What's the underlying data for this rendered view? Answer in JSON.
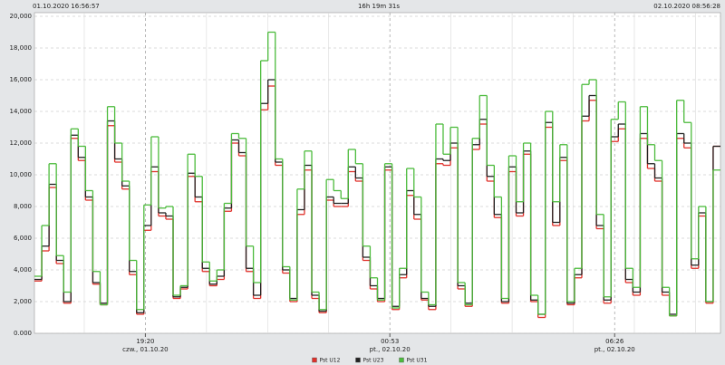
{
  "header": {
    "start": "01.10.2020 16:56:57",
    "duration": "16h 19m 31s",
    "end": "02.10.2020 08:56:28"
  },
  "chart_data": {
    "type": "step",
    "xlim": [
      0,
      94
    ],
    "xticks": [
      {
        "value": 15.2,
        "label": "19:20",
        "date": "czw., 01.10.20"
      },
      {
        "value": 48.7,
        "label": "00:53",
        "date": "pt., 02.10.20"
      },
      {
        "value": 79.5,
        "label": "06:26",
        "date": "pt., 02.10.20"
      }
    ],
    "ylim": [
      0,
      20
    ],
    "yticks": [
      {
        "value": 0,
        "label": "0.000"
      },
      {
        "value": 2,
        "label": "2,000"
      },
      {
        "value": 4,
        "label": "4,000"
      },
      {
        "value": 6,
        "label": "6,000"
      },
      {
        "value": 8,
        "label": "8,000"
      },
      {
        "value": 10,
        "label": "10,000"
      },
      {
        "value": 12,
        "label": "12,000"
      },
      {
        "value": 14,
        "label": "14,000"
      },
      {
        "value": 16,
        "label": "16,000"
      },
      {
        "value": 18,
        "label": "18,000"
      },
      {
        "value": 20,
        "label": "20,000"
      }
    ],
    "grid": true,
    "legend": "bottom",
    "series": [
      {
        "name": "Pst U12",
        "color": "#e0312b",
        "values": [
          3.3,
          5.2,
          9.2,
          4.4,
          1.9,
          12.3,
          10.9,
          8.4,
          3.1,
          1.8,
          13.1,
          10.8,
          9.1,
          3.7,
          1.2,
          6.5,
          10.2,
          7.4,
          7.2,
          2.2,
          2.8,
          9.9,
          8.3,
          3.9,
          3.0,
          3.4,
          7.7,
          12.0,
          11.2,
          3.9,
          2.2,
          14.1,
          15.6,
          10.6,
          3.8,
          2.0,
          7.5,
          10.3,
          2.2,
          1.3,
          8.4,
          8.0,
          8.0,
          10.2,
          9.6,
          4.6,
          2.8,
          2.0,
          10.3,
          1.5,
          3.5,
          8.7,
          7.2,
          2.1,
          1.5,
          10.7,
          10.6,
          11.7,
          2.8,
          1.7,
          11.6,
          13.2,
          9.6,
          7.3,
          1.9,
          10.2,
          7.4,
          11.3,
          2.0,
          1.0,
          13.0,
          6.8,
          10.9,
          1.8,
          3.5,
          13.4,
          14.7,
          6.6,
          1.9,
          12.1,
          12.9,
          3.2,
          2.4,
          12.3,
          10.4,
          9.6,
          2.4,
          1.1,
          12.3,
          11.7,
          4.1,
          7.4,
          1.9,
          11.8
        ]
      },
      {
        "name": "Pst U23",
        "color": "#222222",
        "values": [
          3.4,
          5.5,
          9.4,
          4.6,
          2.0,
          12.5,
          11.1,
          8.6,
          3.2,
          1.9,
          13.4,
          11.0,
          9.3,
          3.9,
          1.3,
          6.8,
          10.5,
          7.6,
          7.4,
          2.3,
          2.9,
          10.1,
          8.6,
          4.1,
          3.1,
          3.6,
          7.9,
          12.2,
          11.4,
          4.1,
          2.4,
          14.5,
          16.0,
          10.8,
          4.0,
          2.2,
          7.8,
          10.6,
          2.4,
          1.4,
          8.6,
          8.2,
          8.2,
          10.5,
          9.8,
          4.8,
          3.0,
          2.2,
          10.5,
          1.7,
          3.7,
          9.0,
          7.5,
          2.2,
          1.7,
          11.0,
          10.9,
          12.0,
          3.0,
          1.9,
          11.9,
          13.5,
          9.9,
          7.5,
          2.0,
          10.5,
          7.6,
          11.5,
          2.1,
          1.2,
          13.3,
          7.0,
          11.1,
          1.9,
          3.7,
          13.7,
          15.0,
          6.8,
          2.1,
          12.4,
          13.2,
          3.4,
          2.6,
          12.6,
          10.7,
          9.8,
          2.6,
          1.2,
          12.6,
          12.0,
          4.3,
          7.6,
          2.0,
          11.8
        ]
      },
      {
        "name": "Pst U31",
        "color": "#4cbb3c",
        "values": [
          3.6,
          6.8,
          10.7,
          4.9,
          2.6,
          12.9,
          11.8,
          9.0,
          3.9,
          1.8,
          14.3,
          12.0,
          9.6,
          4.6,
          1.5,
          8.1,
          12.4,
          7.9,
          8.0,
          2.4,
          3.0,
          11.3,
          9.9,
          4.5,
          3.3,
          4.0,
          8.2,
          12.6,
          12.3,
          5.5,
          3.2,
          17.2,
          19.0,
          11.0,
          4.2,
          2.1,
          9.1,
          11.5,
          2.6,
          1.5,
          9.7,
          9.0,
          8.5,
          11.6,
          10.7,
          5.5,
          3.5,
          2.1,
          10.7,
          1.6,
          4.1,
          10.4,
          8.6,
          2.6,
          1.8,
          13.2,
          11.3,
          13.0,
          3.2,
          1.8,
          12.3,
          15.0,
          10.6,
          8.6,
          2.2,
          11.2,
          8.3,
          12.0,
          2.4,
          1.2,
          14.0,
          8.3,
          11.9,
          2.0,
          4.1,
          15.7,
          16.0,
          7.5,
          2.3,
          13.5,
          14.6,
          4.1,
          2.9,
          14.3,
          11.9,
          10.9,
          2.9,
          1.1,
          14.7,
          13.3,
          4.7,
          8.0,
          2.0,
          10.3
        ]
      }
    ]
  }
}
